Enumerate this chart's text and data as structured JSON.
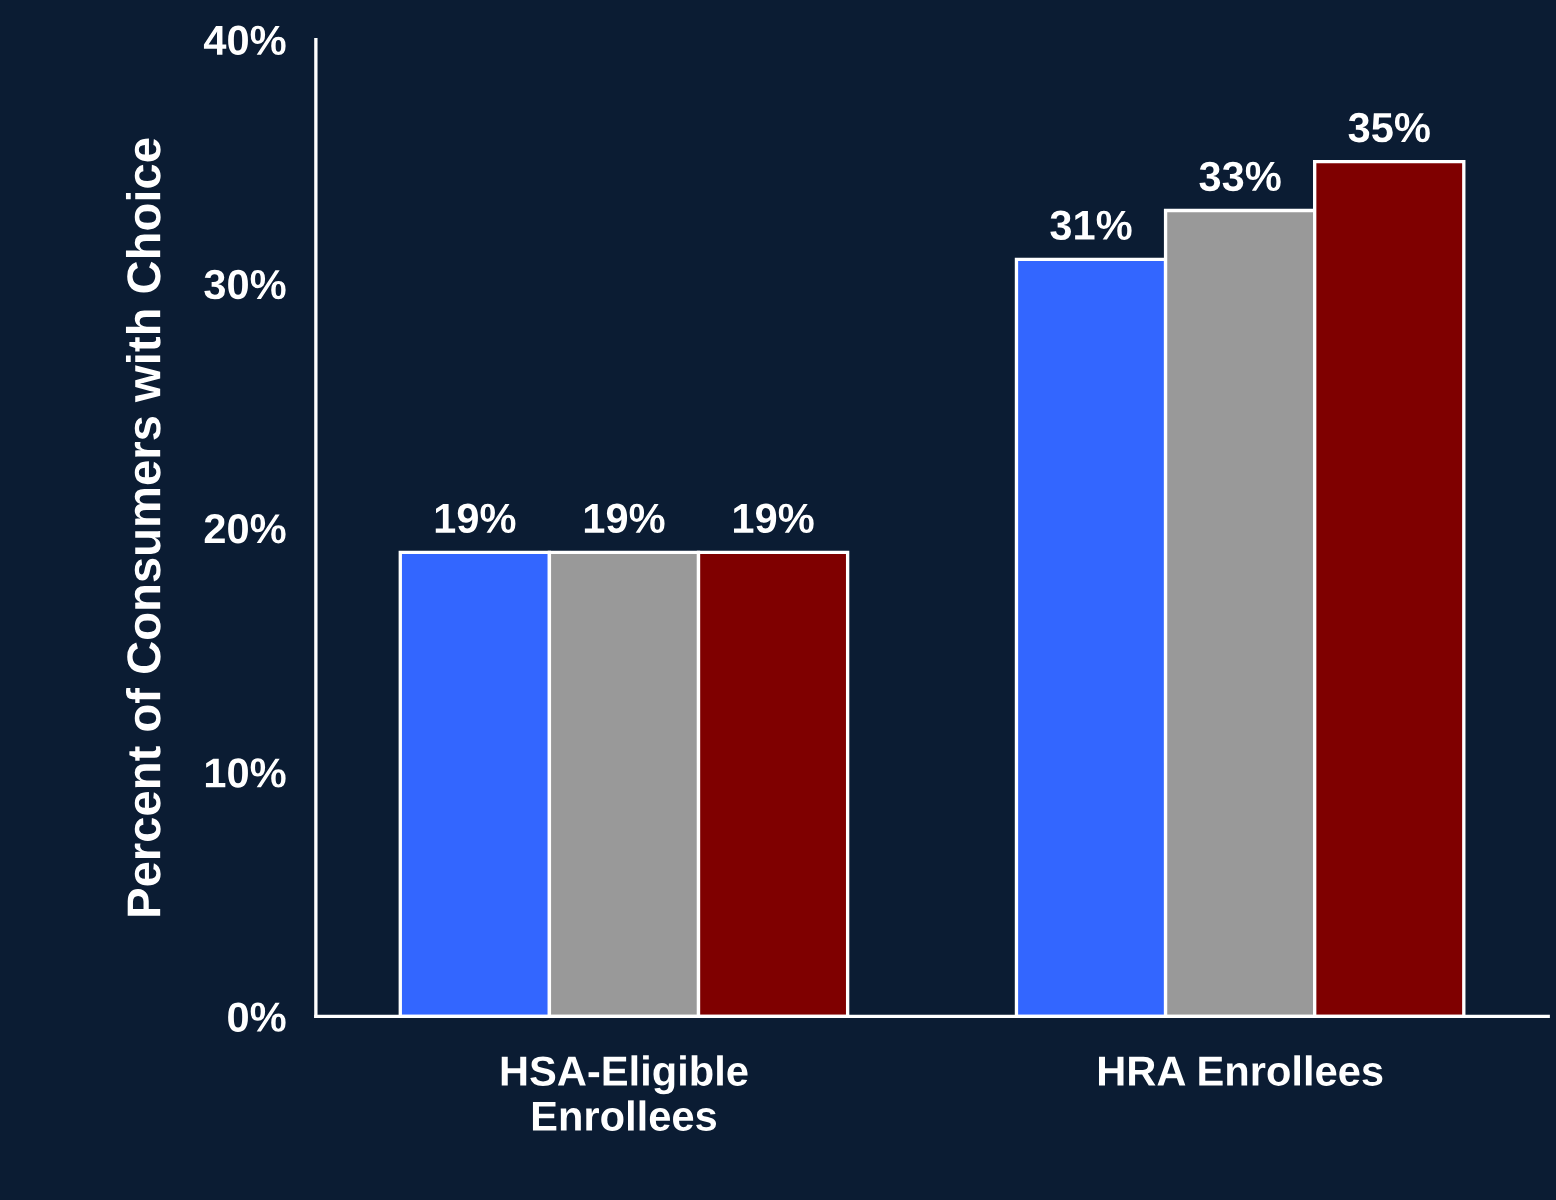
{
  "chart_data": {
    "type": "bar",
    "ylabel": "Percent of Consumers with Choice",
    "categories": [
      "HSA-Eligible\nEnrollees",
      "HRA Enrollees"
    ],
    "series": [
      {
        "color": "#3366ff",
        "values": [
          19,
          31
        ],
        "value_labels": [
          "19%",
          "31%"
        ]
      },
      {
        "color": "#999999",
        "values": [
          19,
          33
        ],
        "value_labels": [
          "19%",
          "33%"
        ]
      },
      {
        "color": "#7f0000",
        "values": [
          19,
          35
        ],
        "value_labels": [
          "19%",
          "35%"
        ]
      }
    ],
    "ylim": [
      0,
      40
    ],
    "yticks": [
      {
        "value": 0,
        "label": "0%"
      },
      {
        "value": 10,
        "label": "10%"
      },
      {
        "value": 20,
        "label": "20%"
      },
      {
        "value": 30,
        "label": "30%"
      },
      {
        "value": 40,
        "label": "40%"
      }
    ]
  }
}
